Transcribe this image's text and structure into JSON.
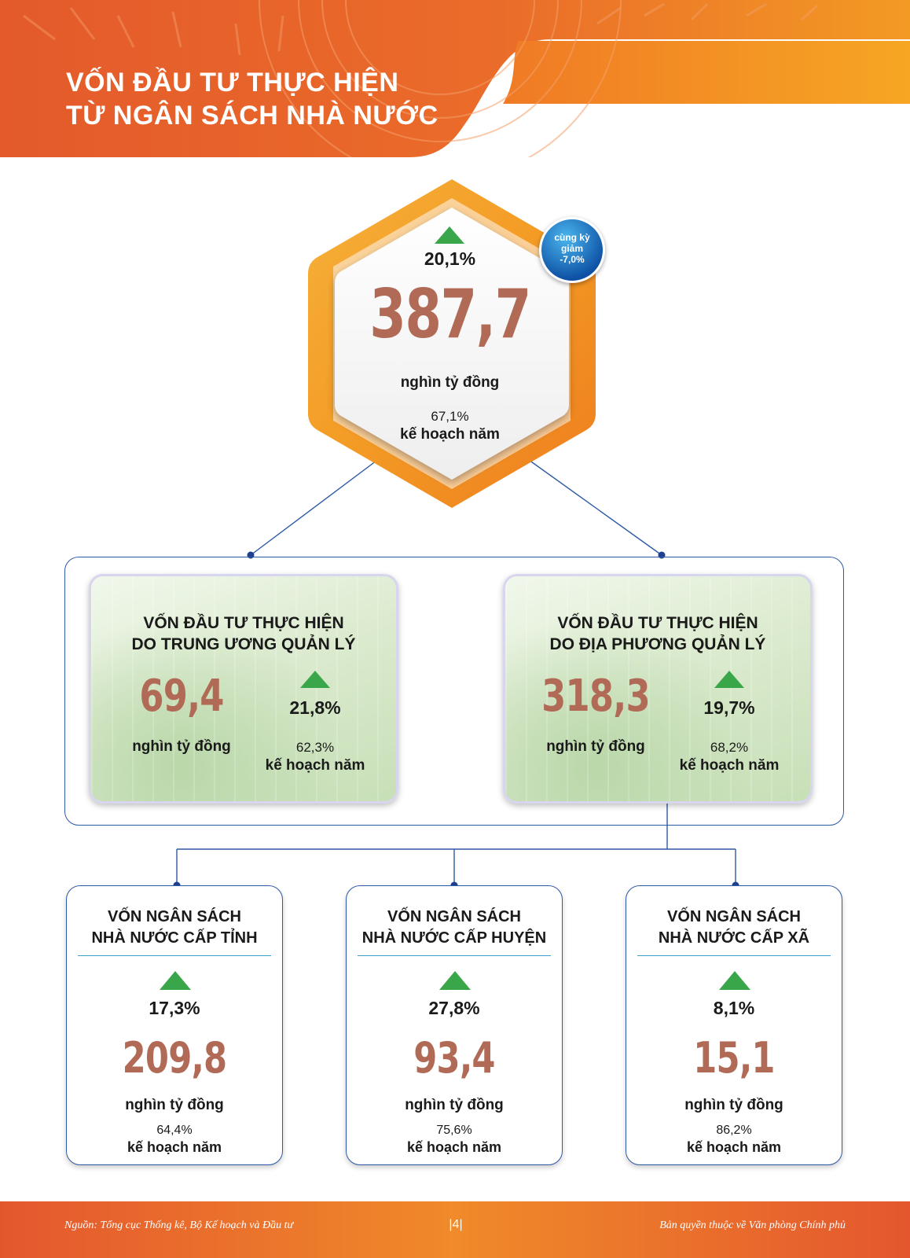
{
  "header": {
    "title_line1": "VỐN ĐẦU TƯ THỰC HIỆN",
    "title_line2": "TỪ NGÂN SÁCH NHÀ NƯỚC"
  },
  "total": {
    "growth": "20,1%",
    "value": "387,7",
    "unit": "nghìn tỷ đồng",
    "plan_pct": "67,1%",
    "plan_label": "kế hoạch năm",
    "badge_line1": "cùng kỳ",
    "badge_line2": "giảm",
    "badge_line3": "-7,0%"
  },
  "central": {
    "title_line1": "VỐN ĐẦU TƯ THỰC HIỆN",
    "title_line2": "DO TRUNG ƯƠNG QUẢN LÝ",
    "value": "69,4",
    "unit": "nghìn tỷ đồng",
    "growth": "21,8%",
    "plan_pct": "62,3%",
    "plan_label": "kế hoạch năm"
  },
  "local": {
    "title_line1": "VỐN ĐẦU TƯ THỰC HIỆN",
    "title_line2": "DO ĐỊA PHƯƠNG QUẢN LÝ",
    "value": "318,3",
    "unit": "nghìn tỷ đồng",
    "growth": "19,7%",
    "plan_pct": "68,2%",
    "plan_label": "kế hoạch năm"
  },
  "province": {
    "title_line1": "VỐN NGÂN SÁCH",
    "title_line2": "NHÀ NƯỚC CẤP TỈNH",
    "growth": "17,3%",
    "value": "209,8",
    "unit": "nghìn tỷ đồng",
    "plan_pct": "64,4%",
    "plan_label": "kế hoạch năm"
  },
  "district": {
    "title_line1": "VỐN NGÂN SÁCH",
    "title_line2": "NHÀ NƯỚC CẤP HUYỆN",
    "growth": "27,8%",
    "value": "93,4",
    "unit": "nghìn tỷ đồng",
    "plan_pct": "75,6%",
    "plan_label": "kế hoạch năm"
  },
  "commune": {
    "title_line1": "VỐN NGÂN SÁCH",
    "title_line2": "NHÀ NƯỚC CẤP XÃ",
    "growth": "8,1%",
    "value": "15,1",
    "unit": "nghìn tỷ đồng",
    "plan_pct": "86,2%",
    "plan_label": "kế hoạch năm"
  },
  "footer": {
    "source": "Nguồn: Tổng cục Thống kê, Bộ Kế hoạch và Đầu tư",
    "page": "|4|",
    "copyright": "Bản quyền thuộc về Văn phòng Chính phủ"
  },
  "colors": {
    "accent_orange": "#e8662a",
    "value_brown": "#b06a55",
    "up_green": "#3aa64a",
    "line_blue": "#2d5aa6"
  }
}
